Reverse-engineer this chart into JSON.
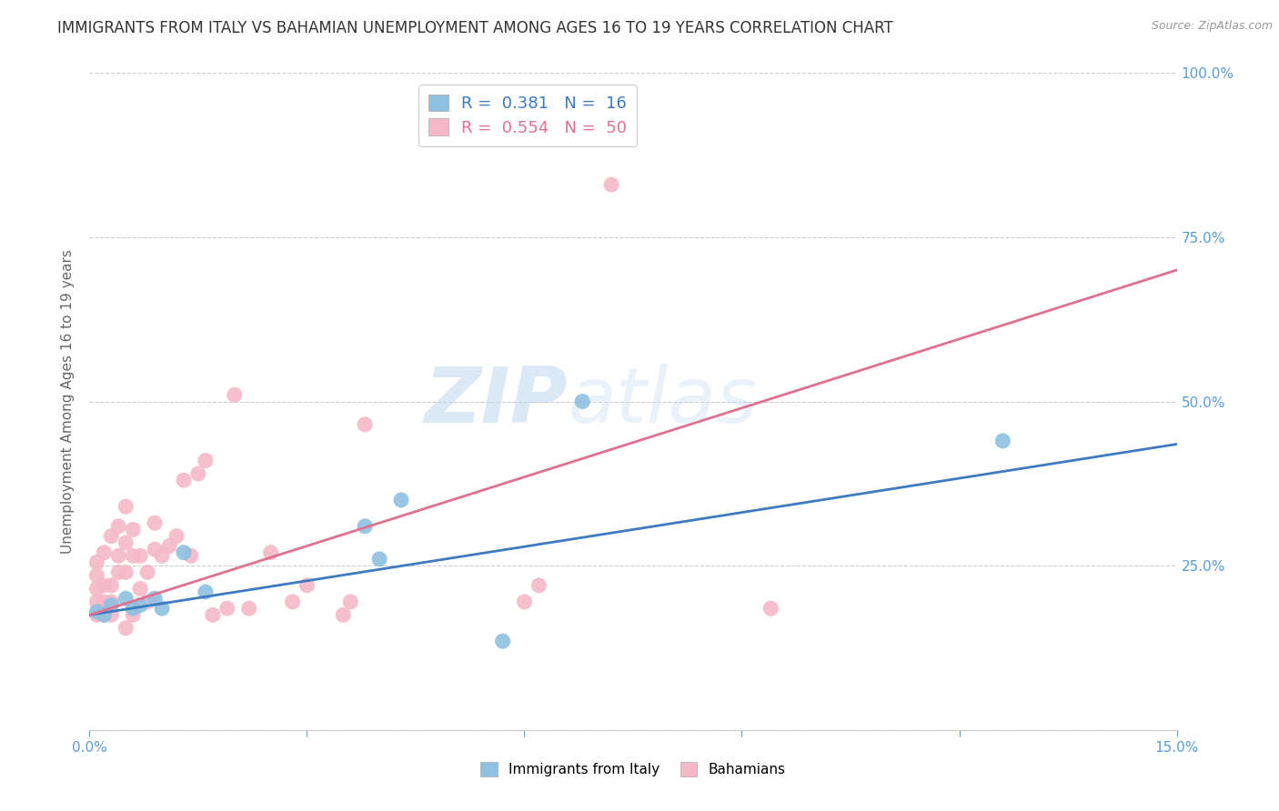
{
  "title": "IMMIGRANTS FROM ITALY VS BAHAMIAN UNEMPLOYMENT AMONG AGES 16 TO 19 YEARS CORRELATION CHART",
  "source": "Source: ZipAtlas.com",
  "ylabel": "Unemployment Among Ages 16 to 19 years",
  "xlim": [
    0.0,
    0.15
  ],
  "ylim": [
    0.0,
    1.0
  ],
  "xticks": [
    0.0,
    0.03,
    0.06,
    0.09,
    0.12,
    0.15
  ],
  "yticks": [
    0.0,
    0.25,
    0.5,
    0.75,
    1.0
  ],
  "xticklabels": [
    "0.0%",
    "",
    "",
    "",
    "",
    "15.0%"
  ],
  "yticklabels_right": [
    "",
    "25.0%",
    "50.0%",
    "75.0%",
    "100.0%"
  ],
  "blue_label": "Immigrants from Italy",
  "pink_label": "Bahamians",
  "blue_R": "0.381",
  "blue_N": "16",
  "pink_R": "0.554",
  "pink_N": "50",
  "blue_color": "#8ec0e0",
  "pink_color": "#f4b8c8",
  "blue_line_color": "#3d7abf",
  "pink_line_color": "#e07090",
  "axis_color": "#5b9bd5",
  "watermark_zip": "ZIP",
  "watermark_atlas": "atlas",
  "blue_scatter_x": [
    0.001,
    0.002,
    0.003,
    0.005,
    0.006,
    0.007,
    0.009,
    0.01,
    0.013,
    0.016,
    0.038,
    0.04,
    0.043,
    0.057,
    0.068,
    0.126
  ],
  "blue_scatter_y": [
    0.18,
    0.175,
    0.19,
    0.2,
    0.185,
    0.19,
    0.2,
    0.185,
    0.27,
    0.21,
    0.31,
    0.26,
    0.35,
    0.135,
    0.5,
    0.44
  ],
  "pink_scatter_x": [
    0.001,
    0.001,
    0.001,
    0.001,
    0.001,
    0.002,
    0.002,
    0.002,
    0.002,
    0.003,
    0.003,
    0.003,
    0.003,
    0.004,
    0.004,
    0.004,
    0.005,
    0.005,
    0.005,
    0.005,
    0.006,
    0.006,
    0.006,
    0.007,
    0.007,
    0.008,
    0.008,
    0.009,
    0.009,
    0.01,
    0.011,
    0.012,
    0.013,
    0.014,
    0.015,
    0.016,
    0.017,
    0.019,
    0.02,
    0.022,
    0.025,
    0.028,
    0.03,
    0.035,
    0.036,
    0.038,
    0.06,
    0.062,
    0.072,
    0.094
  ],
  "pink_scatter_y": [
    0.175,
    0.195,
    0.215,
    0.235,
    0.255,
    0.175,
    0.195,
    0.22,
    0.27,
    0.195,
    0.22,
    0.295,
    0.175,
    0.24,
    0.265,
    0.31,
    0.155,
    0.24,
    0.285,
    0.34,
    0.175,
    0.265,
    0.305,
    0.215,
    0.265,
    0.195,
    0.24,
    0.275,
    0.315,
    0.265,
    0.28,
    0.295,
    0.38,
    0.265,
    0.39,
    0.41,
    0.175,
    0.185,
    0.51,
    0.185,
    0.27,
    0.195,
    0.22,
    0.175,
    0.195,
    0.465,
    0.195,
    0.22,
    0.83,
    0.185
  ],
  "blue_trend_x": [
    0.0,
    0.15
  ],
  "blue_trend_y": [
    0.175,
    0.435
  ],
  "pink_trend_x": [
    0.0,
    0.15
  ],
  "pink_trend_y": [
    0.175,
    0.7
  ],
  "background_color": "#ffffff",
  "grid_color": "#cccccc",
  "title_fontsize": 12,
  "label_fontsize": 11,
  "tick_fontsize": 11,
  "legend_fontsize": 13
}
